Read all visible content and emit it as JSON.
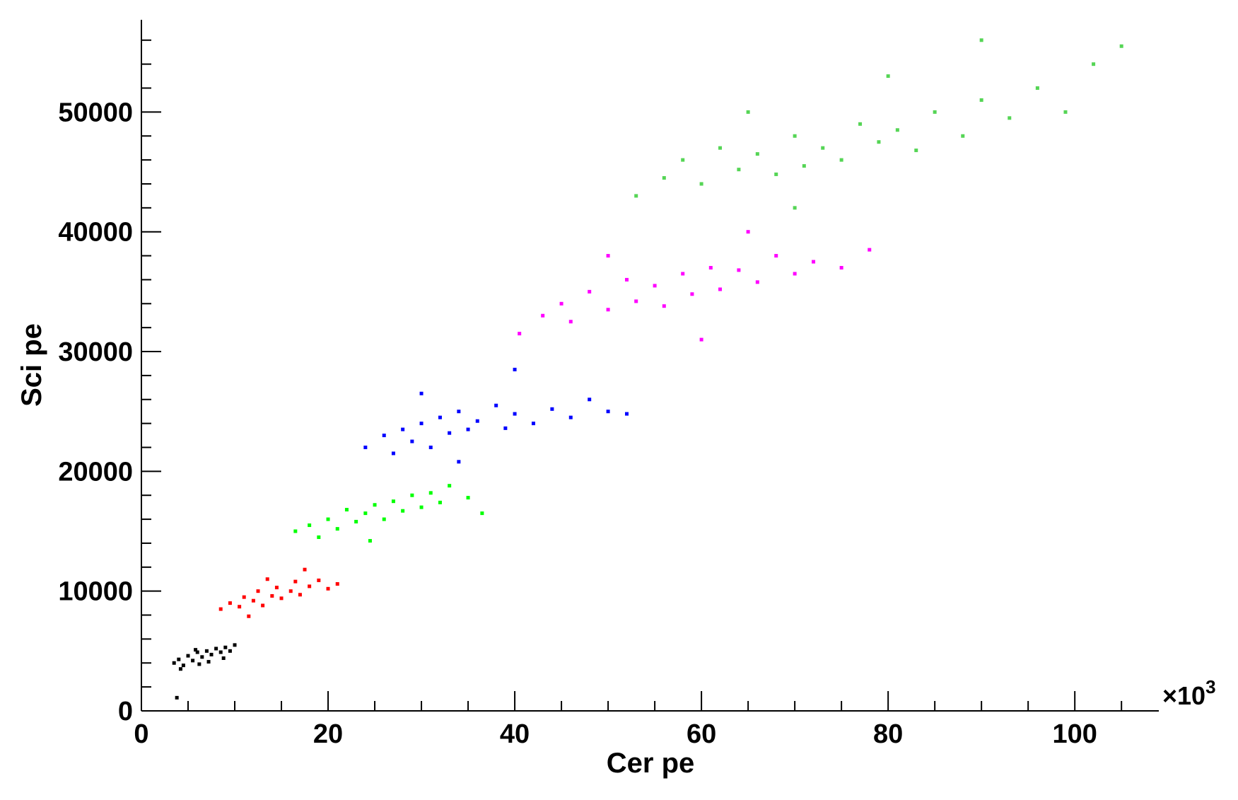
{
  "chart_data": {
    "type": "scatter",
    "xlabel": "Cer pe",
    "ylabel": "Sci pe",
    "x_multiplier": {
      "base": "×10",
      "exponent": "3"
    },
    "xlim": [
      0,
      109
    ],
    "ylim": [
      0,
      57700
    ],
    "xticks": [
      0,
      20,
      40,
      60,
      80,
      100
    ],
    "yticks": [
      0,
      10000,
      20000,
      30000,
      40000,
      50000
    ],
    "minor_xticks": [
      5,
      10,
      15,
      25,
      30,
      35,
      45,
      50,
      55,
      65,
      70,
      75,
      85,
      90,
      95,
      105
    ],
    "minor_yticks": [
      2000,
      4000,
      6000,
      8000,
      12000,
      14000,
      16000,
      18000,
      22000,
      24000,
      26000,
      28000,
      32000,
      34000,
      36000,
      38000,
      42000,
      44000,
      46000,
      48000,
      52000,
      54000,
      56000
    ],
    "series": [
      {
        "color": "#000000",
        "x": [
          3.5,
          4,
          4.5,
          5,
          5.5,
          6,
          6.5,
          7,
          7.5,
          8,
          8.5,
          9,
          9.5,
          10,
          4.2,
          5.8,
          7.2,
          8.8,
          6.2,
          3.8
        ],
        "y": [
          4000,
          4300,
          3800,
          4600,
          4200,
          4900,
          4500,
          5000,
          4700,
          5200,
          4900,
          5300,
          5000,
          5500,
          3500,
          5100,
          4100,
          4400,
          3900,
          1100
        ]
      },
      {
        "color": "#ff0000",
        "x": [
          8.5,
          9.5,
          10.5,
          11,
          12,
          12.5,
          13,
          14,
          14.5,
          15,
          16,
          16.5,
          17,
          18,
          19,
          20,
          21,
          11.5,
          13.5,
          17.5
        ],
        "y": [
          8500,
          9000,
          8700,
          9500,
          9200,
          10000,
          8800,
          9600,
          10300,
          9400,
          10000,
          10800,
          9700,
          10400,
          10900,
          10200,
          10600,
          7900,
          11000,
          11800
        ]
      },
      {
        "color": "#00ff00",
        "x": [
          16.5,
          18,
          19,
          20,
          21,
          22,
          23,
          24,
          25,
          26,
          27,
          28,
          29,
          30,
          31,
          32,
          33,
          35,
          36.5,
          24.5
        ],
        "y": [
          15000,
          15500,
          14500,
          16000,
          15200,
          16800,
          15800,
          16500,
          17200,
          16000,
          17500,
          16700,
          18000,
          17000,
          18200,
          17400,
          18800,
          17800,
          16500,
          14200
        ]
      },
      {
        "color": "#0000ff",
        "x": [
          24,
          26,
          27,
          28,
          29,
          30,
          31,
          32,
          33,
          34,
          35,
          36,
          38,
          39,
          40,
          42,
          44,
          46,
          48,
          50,
          52,
          30,
          34,
          40
        ],
        "y": [
          22000,
          23000,
          21500,
          23500,
          22500,
          24000,
          22000,
          24500,
          23200,
          25000,
          23500,
          24200,
          25500,
          23600,
          24800,
          24000,
          25200,
          24500,
          26000,
          25000,
          24800,
          26500,
          20800,
          28500
        ]
      },
      {
        "color": "#ff00ff",
        "x": [
          40.5,
          43,
          45,
          46,
          48,
          50,
          52,
          53,
          55,
          56,
          58,
          59,
          61,
          62,
          64,
          66,
          68,
          70,
          72,
          75,
          78,
          50,
          60,
          65
        ],
        "y": [
          31500,
          33000,
          34000,
          32500,
          35000,
          33500,
          36000,
          34200,
          35500,
          33800,
          36500,
          34800,
          37000,
          35200,
          36800,
          35800,
          38000,
          36500,
          37500,
          37000,
          38500,
          38000,
          31000,
          40000
        ]
      },
      {
        "color": "#55d555",
        "x": [
          53,
          56,
          58,
          60,
          62,
          64,
          66,
          68,
          70,
          71,
          73,
          75,
          77,
          79,
          81,
          83,
          85,
          88,
          90,
          93,
          96,
          99,
          102,
          105,
          80,
          70,
          90,
          65
        ],
        "y": [
          43000,
          44500,
          46000,
          44000,
          47000,
          45200,
          46500,
          44800,
          48000,
          45500,
          47000,
          46000,
          49000,
          47500,
          48500,
          46800,
          50000,
          48000,
          51000,
          49500,
          52000,
          50000,
          54000,
          55500,
          53000,
          42000,
          56000,
          50000
        ]
      }
    ]
  }
}
